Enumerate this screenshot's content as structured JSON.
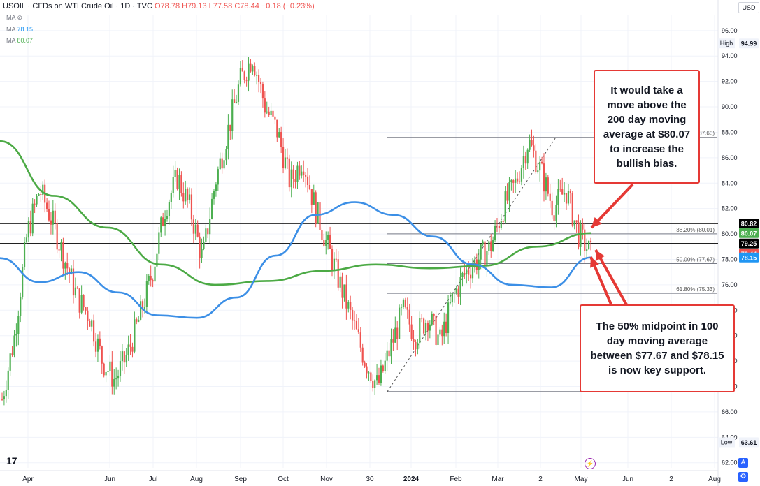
{
  "header": {
    "symbol_line": "USOIL · CFDs on WTI Crude Oil · 1D · TVC",
    "ohlc": "O78.78 H79.13 L77.58 C78.44 −0.18 (−0.23%)",
    "currency": "USD"
  },
  "indicators": [
    {
      "label": "MA",
      "value": ""
    },
    {
      "label": "MA",
      "value": "78.15",
      "color": "#2196f3"
    },
    {
      "label": "MA",
      "value": "80.07",
      "color": "#4caf50"
    }
  ],
  "colors": {
    "up": "#4caf50",
    "down": "#ef5350",
    "ma100": "#3c8fe6",
    "ma200": "#4caa45",
    "callout": "#e53935"
  },
  "callouts": {
    "top": "It would take a move above the 200 day moving average at $80.07 to increase the bullish bias.",
    "bottom": "The 50% midpoint in 100 day moving average between $77.67 and $78.15 is now key support."
  },
  "chart_data": {
    "type": "candlestick",
    "ylim": [
      61.6,
      97.2
    ],
    "y_ticks": [
      62,
      64,
      66,
      68,
      70,
      72,
      74,
      76,
      78,
      80,
      82,
      84,
      86,
      88,
      90,
      92,
      94,
      96
    ],
    "x_labels": [
      "Apr",
      "Jun",
      "Jul",
      "Aug",
      "Sep",
      "Oct",
      "Nov",
      "30",
      "2024",
      "Feb",
      "Mar",
      "2",
      "May",
      "Jun",
      "2",
      "Aug"
    ],
    "close_path": [
      67,
      72,
      80,
      83.5,
      81,
      78,
      75,
      73.5,
      70,
      68.5,
      70.5,
      73.5,
      77,
      82,
      84.5,
      82,
      78,
      84,
      88,
      92,
      94,
      90,
      88,
      84,
      86,
      82,
      79,
      76,
      73,
      70,
      68,
      71,
      74,
      72,
      73.5,
      71.5,
      75,
      77,
      78,
      79,
      82,
      84,
      87.3,
      85,
      82,
      83.5,
      80,
      78.44
    ],
    "ma100": [
      78.1,
      76.2,
      77.0,
      75.4,
      73.6,
      73.4,
      75.0,
      78.3,
      81.5,
      82.5,
      81.5,
      79.8,
      77.6,
      76.0,
      75.8,
      78.15
    ],
    "ma200": [
      87.3,
      83.0,
      80.5,
      77.6,
      76.0,
      76.3,
      77.1,
      77.6,
      77.3,
      77.5,
      79.0,
      80.07
    ],
    "horizontal_levels": [
      {
        "price": 80.82,
        "label": "80.82",
        "label_color": "#000000"
      },
      {
        "price": 79.25,
        "label": "79.25",
        "label_color": "#000000"
      }
    ],
    "fibonacci": [
      {
        "label": ".00% (87.60)",
        "price": 87.6
      },
      {
        "label": "38.20% (80.01)",
        "price": 80.01
      },
      {
        "label": "50.00% (77.67)",
        "price": 77.67
      },
      {
        "label": "61.80% (75.33)",
        "price": 75.33
      }
    ],
    "fib_low": 67.6,
    "price_labels": [
      {
        "text": "High",
        "price": 94.99,
        "value": "94.99",
        "kind": "high"
      },
      {
        "text": "Low",
        "price": 63.61,
        "value": "63.61",
        "kind": "low"
      },
      {
        "value": "80.82",
        "price": 80.82,
        "kind": "black"
      },
      {
        "value": "80.07",
        "price": 80.07,
        "kind": "green"
      },
      {
        "value": "79.25",
        "price": 79.25,
        "kind": "black"
      },
      {
        "value": "78.44",
        "price": 78.44,
        "kind": "red"
      },
      {
        "value": "78.15",
        "price": 78.15,
        "kind": "blue"
      }
    ]
  }
}
